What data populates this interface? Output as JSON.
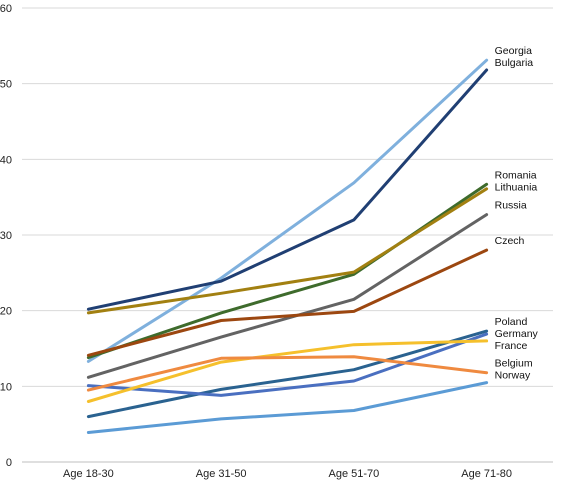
{
  "chart_data": {
    "type": "line",
    "title": "",
    "xlabel": "",
    "ylabel": "",
    "categories": [
      "Age 18-30",
      "Age 31-50",
      "Age 51-70",
      "Age 71-80"
    ],
    "ylim": [
      0,
      60
    ],
    "yticks": [
      0,
      10,
      20,
      30,
      40,
      50,
      60
    ],
    "grid": true,
    "legend": "labels at line ends (right)",
    "series": [
      {
        "name": "Georgia",
        "color": "#7fb0dd",
        "values": [
          13.3,
          24.3,
          36.9,
          53.1
        ]
      },
      {
        "name": "Bulgaria",
        "color": "#203f73",
        "values": [
          20.2,
          23.9,
          32.0,
          51.8
        ]
      },
      {
        "name": "Romania",
        "color": "#3e6b2c",
        "values": [
          13.8,
          19.7,
          24.8,
          36.7
        ]
      },
      {
        "name": "Lithuania",
        "color": "#a28011",
        "values": [
          19.7,
          22.3,
          25.1,
          36.1
        ]
      },
      {
        "name": "Russia",
        "color": "#636363",
        "values": [
          11.2,
          16.5,
          21.5,
          32.7
        ]
      },
      {
        "name": "Czech",
        "color": "#9c4710",
        "values": [
          14.1,
          18.7,
          19.9,
          28.0
        ]
      },
      {
        "name": "Poland",
        "color": "#2a6290",
        "values": [
          6.0,
          9.6,
          12.2,
          17.3
        ]
      },
      {
        "name": "Germany",
        "color": "#4a6fc0",
        "values": [
          10.1,
          8.8,
          10.7,
          16.9
        ]
      },
      {
        "name": "France",
        "color": "#f5c02c",
        "values": [
          8.0,
          13.2,
          15.5,
          16.0
        ]
      },
      {
        "name": "Belgium",
        "color": "#ef8a40",
        "values": [
          9.5,
          13.7,
          13.9,
          11.8
        ]
      },
      {
        "name": "Norway",
        "color": "#5b9bd5",
        "values": [
          3.9,
          5.7,
          6.8,
          10.5
        ]
      }
    ]
  }
}
